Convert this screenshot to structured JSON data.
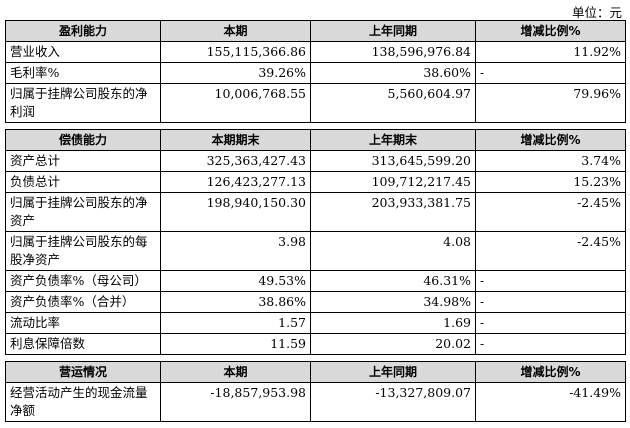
{
  "unit": "单位：元",
  "sections": [
    {
      "header": [
        "盈利能力",
        "本期",
        "上年同期",
        "增减比例%"
      ],
      "rows": [
        [
          "营业收入",
          "155,115,366.86",
          "138,596,976.84",
          "11.92%"
        ],
        [
          "毛利率%",
          "39.26%",
          "38.60%",
          "-"
        ],
        [
          "归属于挂牌公司股东的净利润",
          "10,006,768.55",
          "5,560,604.97",
          "79.96%"
        ]
      ]
    },
    {
      "header": [
        "偿债能力",
        "本期期末",
        "上年期末",
        "增减比例%"
      ],
      "rows": [
        [
          "资产总计",
          "325,363,427.43",
          "313,645,599.20",
          "3.74%"
        ],
        [
          "负债总计",
          "126,423,277.13",
          "109,712,217.45",
          "15.23%"
        ],
        [
          "归属于挂牌公司股东的净资产",
          "198,940,150.30",
          "203,933,381.75",
          "-2.45%"
        ],
        [
          "归属于挂牌公司股东的每股净资产",
          "3.98",
          "4.08",
          "-2.45%"
        ],
        [
          "资产负债率%（母公司）",
          "49.53%",
          "46.31%",
          "-"
        ],
        [
          "资产负债率%（合并）",
          "38.86%",
          "34.98%",
          "-"
        ],
        [
          "流动比率",
          "1.57",
          "1.69",
          "-"
        ],
        [
          "利息保障倍数",
          "11.59",
          "20.02",
          "-"
        ]
      ]
    },
    {
      "header": [
        "营运情况",
        "本期",
        "上年同期",
        "增减比例%"
      ],
      "rows": [
        [
          "经营活动产生的现金流量净额",
          "-18,857,953.98",
          "-13,327,809.07",
          "-41.49%"
        ]
      ]
    }
  ]
}
